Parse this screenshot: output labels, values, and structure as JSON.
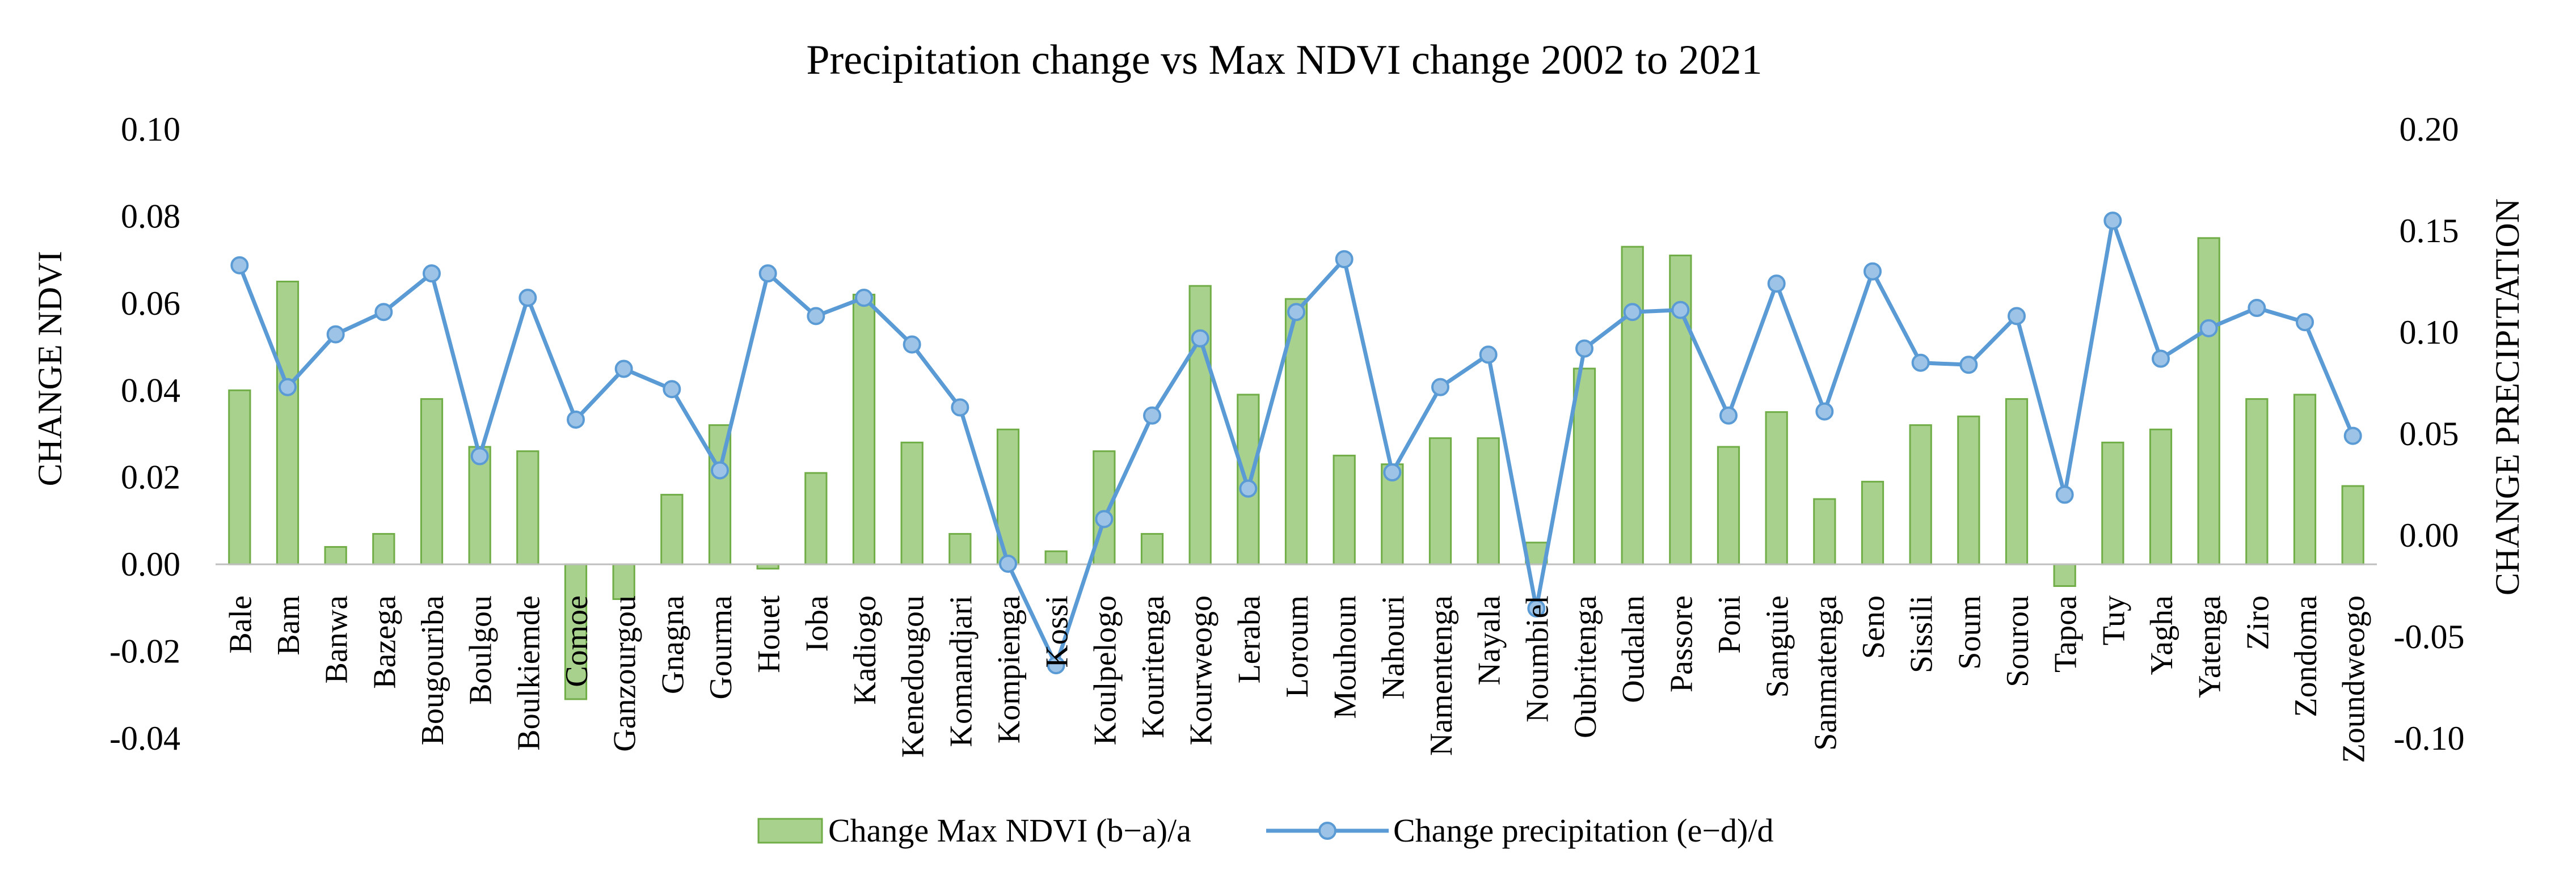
{
  "chart_data": {
    "type": "bar",
    "title": "Precipitation change vs Max NDVI change 2002 to 2021",
    "ylabel": "CHANGE NDVI",
    "y2label": "CHANGE PRECIPITATION",
    "ylim": [
      -0.04,
      0.1
    ],
    "y2lim": [
      -0.1,
      0.2
    ],
    "yticks": [
      "0.10",
      "0.08",
      "0.06",
      "0.04",
      "0.02",
      "0.00",
      "-0.02",
      "-0.04"
    ],
    "y2ticks": [
      "0.20",
      "0.15",
      "0.10",
      "0.05",
      "0.00",
      "-0.05",
      "-0.10"
    ],
    "grid": false,
    "legend_position": "bottom",
    "categories": [
      "Bale",
      "Bam",
      "Banwa",
      "Bazega",
      "Bougouriba",
      "Boulgou",
      "Boulkiemde",
      "Comoe",
      "Ganzourgou",
      "Gnagna",
      "Gourma",
      "Houet",
      "Ioba",
      "Kadiogo",
      "Kenedougou",
      "Komandjari",
      "Kompienga",
      "Kossi",
      "Koulpelogo",
      "Kouritenga",
      "Kourweogo",
      "Leraba",
      "Loroum",
      "Mouhoun",
      "Nahouri",
      "Namentenga",
      "Nayala",
      "Noumbiel",
      "Oubritenga",
      "Oudalan",
      "Passore",
      "Poni",
      "Sanguie",
      "Sanmatenga",
      "Seno",
      "Sissili",
      "Soum",
      "Sourou",
      "Tapoa",
      "Tuy",
      "Yagha",
      "Yatenga",
      "Ziro",
      "Zondoma",
      "Zoundweogo"
    ],
    "series": [
      {
        "name": "Change Max NDVI (b−a)/a",
        "type": "bar",
        "axis": "left",
        "color": "#a9d18e",
        "edge_color": "#70ad47",
        "values": [
          0.04,
          0.065,
          0.004,
          0.007,
          0.038,
          0.027,
          0.026,
          -0.031,
          -0.008,
          0.016,
          0.032,
          -0.001,
          0.021,
          0.062,
          0.028,
          0.007,
          0.031,
          0.003,
          0.026,
          0.007,
          0.064,
          0.039,
          0.061,
          0.025,
          0.023,
          0.029,
          0.029,
          0.005,
          0.045,
          0.073,
          0.071,
          0.027,
          0.035,
          0.015,
          0.019,
          0.032,
          0.034,
          0.038,
          -0.005,
          0.028,
          0.031,
          0.075,
          0.038,
          0.039,
          0.018
        ]
      },
      {
        "name": "Change precipitation (e−d)/d",
        "type": "line",
        "axis": "right",
        "color": "#5b9bd5",
        "values": [
          0.133,
          0.073,
          0.099,
          0.11,
          0.129,
          0.039,
          0.117,
          0.057,
          0.082,
          0.072,
          0.032,
          0.129,
          0.108,
          0.117,
          0.094,
          0.063,
          -0.014,
          -0.064,
          0.008,
          0.059,
          0.097,
          0.023,
          0.11,
          0.136,
          0.031,
          0.073,
          0.089,
          -0.036,
          0.092,
          0.11,
          0.111,
          0.059,
          0.124,
          0.061,
          0.13,
          0.085,
          0.084,
          0.108,
          0.02,
          0.155,
          0.087,
          0.102,
          0.112,
          0.105,
          0.049
        ]
      }
    ]
  }
}
